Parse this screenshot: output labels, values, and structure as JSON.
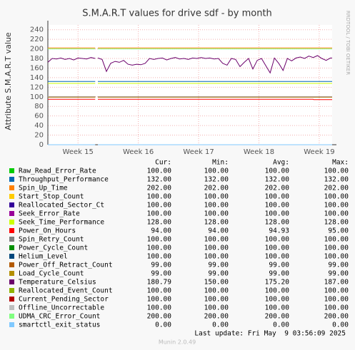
{
  "chart_data": {
    "type": "line",
    "title": "S.M.A.R.T values for drive sdf - by month",
    "y_label": "Attribute S.M.A.R.T value",
    "side_text": "RRDTOOL / TOBI OETIKER",
    "xlim": [
      0,
      33
    ],
    "ylim": [
      0,
      250
    ],
    "xticks": [
      {
        "value": 3.5,
        "label": "Week 15"
      },
      {
        "value": 10.5,
        "label": "Week 16"
      },
      {
        "value": 17.5,
        "label": "Week 17"
      },
      {
        "value": 24.5,
        "label": "Week 18"
      },
      {
        "value": 31.5,
        "label": "Week 19"
      }
    ],
    "yticks": [
      0,
      20,
      40,
      60,
      80,
      100,
      120,
      140,
      160,
      180,
      200,
      220,
      240
    ],
    "grid": true,
    "stat_headers": [
      "Cur:",
      "Min:",
      "Avg:",
      "Max:"
    ],
    "series": [
      {
        "name": "Raw_Read_Error_Rate",
        "color": "#00cc00",
        "x": [
          0,
          5.5,
          5.65,
          5.8,
          33
        ],
        "values": [
          100,
          100,
          null,
          100,
          100
        ],
        "stats": [
          "100.00",
          "100.00",
          "100.00",
          "100.00"
        ]
      },
      {
        "name": "Throughput_Performance",
        "color": "#0066b3",
        "x": [
          0,
          5.5,
          5.65,
          5.8,
          33
        ],
        "values": [
          132,
          132,
          null,
          132,
          132
        ],
        "stats": [
          "132.00",
          "132.00",
          "132.00",
          "132.00"
        ]
      },
      {
        "name": "Spin_Up_Time",
        "color": "#ff8000",
        "x": [
          0,
          5.5,
          5.65,
          5.8,
          33
        ],
        "values": [
          202,
          202,
          null,
          202,
          202
        ],
        "stats": [
          "202.00",
          "202.00",
          "202.00",
          "202.00"
        ]
      },
      {
        "name": "Start_Stop_Count",
        "color": "#ffcc00",
        "x": [
          0,
          5.5,
          5.65,
          5.8,
          33
        ],
        "values": [
          100,
          100,
          null,
          100,
          100
        ],
        "stats": [
          "100.00",
          "100.00",
          "100.00",
          "100.00"
        ]
      },
      {
        "name": "Reallocated_Sector_Ct",
        "color": "#330099",
        "x": [
          0,
          5.5,
          5.65,
          5.8,
          33
        ],
        "values": [
          100,
          100,
          null,
          100,
          100
        ],
        "stats": [
          "100.00",
          "100.00",
          "100.00",
          "100.00"
        ]
      },
      {
        "name": "Seek_Error_Rate",
        "color": "#990099",
        "x": [
          0,
          5.5,
          5.65,
          5.8,
          33
        ],
        "values": [
          100,
          100,
          null,
          100,
          100
        ],
        "stats": [
          "100.00",
          "100.00",
          "100.00",
          "100.00"
        ]
      },
      {
        "name": "Seek_Time_Performance",
        "color": "#ccff00",
        "x": [
          0,
          5.5,
          5.65,
          5.8,
          33
        ],
        "values": [
          128,
          128,
          null,
          128,
          128
        ],
        "stats": [
          "128.00",
          "128.00",
          "128.00",
          "128.00"
        ]
      },
      {
        "name": "Power_On_Hours",
        "color": "#ff0000",
        "x": [
          0,
          5.5,
          5.65,
          5.8,
          30.8,
          30.85,
          33
        ],
        "values": [
          95,
          95,
          null,
          95,
          95,
          94,
          94
        ],
        "stats": [
          "94.00",
          "94.00",
          "94.93",
          "95.00"
        ]
      },
      {
        "name": "Spin_Retry_Count",
        "color": "#808080",
        "x": [
          0,
          5.5,
          5.65,
          5.8,
          33
        ],
        "values": [
          100,
          100,
          null,
          100,
          100
        ],
        "stats": [
          "100.00",
          "100.00",
          "100.00",
          "100.00"
        ]
      },
      {
        "name": "Power_Cycle_Count",
        "color": "#008f00",
        "x": [
          0,
          5.5,
          5.65,
          5.8,
          33
        ],
        "values": [
          100,
          100,
          null,
          100,
          100
        ],
        "stats": [
          "100.00",
          "100.00",
          "100.00",
          "100.00"
        ]
      },
      {
        "name": "Helium_Level",
        "color": "#00487d",
        "x": [
          0,
          5.5,
          5.65,
          5.8,
          33
        ],
        "values": [
          100,
          100,
          null,
          100,
          100
        ],
        "stats": [
          "100.00",
          "100.00",
          "100.00",
          "100.00"
        ]
      },
      {
        "name": "Power_Off_Retract_Count",
        "color": "#b35a00",
        "x": [
          0,
          5.5,
          5.65,
          5.8,
          33
        ],
        "values": [
          99,
          99,
          null,
          99,
          99
        ],
        "stats": [
          "99.00",
          "99.00",
          "99.00",
          "99.00"
        ]
      },
      {
        "name": "Load_Cycle_Count",
        "color": "#b38f00",
        "x": [
          0,
          5.5,
          5.65,
          5.8,
          33
        ],
        "values": [
          99,
          99,
          null,
          99,
          99
        ],
        "stats": [
          "99.00",
          "99.00",
          "99.00",
          "99.00"
        ]
      },
      {
        "name": "Temperature_Celsius",
        "color": "#6b006b",
        "x": [
          0,
          0.5,
          1,
          1.5,
          2,
          2.5,
          3,
          3.5,
          4,
          4.5,
          5,
          5.5,
          5.65,
          5.8,
          6.3,
          6.8,
          7.3,
          7.8,
          8.3,
          8.8,
          9.3,
          9.8,
          10.3,
          10.8,
          11.3,
          11.8,
          12.3,
          12.8,
          13.3,
          13.8,
          14.3,
          14.8,
          15.3,
          15.8,
          16.3,
          16.8,
          17.3,
          17.8,
          18.3,
          18.8,
          19.3,
          19.8,
          20.3,
          20.8,
          21.3,
          21.8,
          22.3,
          22.8,
          23.3,
          23.8,
          24.3,
          24.8,
          25.3,
          25.8,
          26.3,
          26.8,
          27.3,
          27.8,
          28.3,
          28.8,
          29.3,
          29.8,
          30.3,
          30.8,
          31.3,
          31.8,
          32.3,
          32.8,
          33
        ],
        "values": [
          172,
          180,
          179,
          181,
          178,
          180,
          177,
          181,
          180,
          179,
          182,
          180,
          null,
          181,
          178,
          153,
          170,
          174,
          172,
          176,
          168,
          166,
          168,
          167,
          170,
          180,
          178,
          180,
          181,
          177,
          180,
          182,
          179,
          180,
          178,
          181,
          180,
          182,
          180,
          181,
          179,
          180,
          170,
          166,
          180,
          178,
          163,
          172,
          180,
          158,
          176,
          180,
          165,
          150,
          181,
          170,
          155,
          180,
          175,
          181,
          183,
          180,
          185,
          182,
          186,
          180,
          176,
          181,
          181
        ],
        "stats": [
          "180.79",
          "150.00",
          "175.20",
          "187.00"
        ]
      },
      {
        "name": "Reallocated_Event_Count",
        "color": "#8fb300",
        "x": [
          0,
          5.5,
          5.65,
          5.8,
          33
        ],
        "values": [
          100,
          100,
          null,
          100,
          100
        ],
        "stats": [
          "100.00",
          "100.00",
          "100.00",
          "100.00"
        ]
      },
      {
        "name": "Current_Pending_Sector",
        "color": "#b30000",
        "x": [
          0,
          5.5,
          5.65,
          5.8,
          33
        ],
        "values": [
          100,
          100,
          null,
          100,
          100
        ],
        "stats": [
          "100.00",
          "100.00",
          "100.00",
          "100.00"
        ]
      },
      {
        "name": "Offline_Uncorrectable",
        "color": "#bebebe",
        "x": [
          0,
          5.5,
          5.65,
          5.8,
          33
        ],
        "values": [
          100,
          100,
          null,
          100,
          100
        ],
        "stats": [
          "100.00",
          "100.00",
          "100.00",
          "100.00"
        ]
      },
      {
        "name": "UDMA_CRC_Error_Count",
        "color": "#80ff80",
        "x": [
          0,
          5.5,
          5.65,
          5.8,
          33
        ],
        "values": [
          200,
          200,
          null,
          200,
          200
        ],
        "stats": [
          "200.00",
          "200.00",
          "200.00",
          "200.00"
        ]
      },
      {
        "name": "smartctl_exit_status",
        "color": "#80c9ff",
        "x": [
          0,
          5.5,
          5.65,
          5.8,
          33
        ],
        "values": [
          0,
          0,
          null,
          0,
          0
        ],
        "stats": [
          "0.00",
          "0.00",
          "0.00",
          "0.00"
        ]
      }
    ],
    "last_update": "Last update: Fri May  9 03:56:09 2025",
    "footer": "Munin 2.0.49"
  }
}
